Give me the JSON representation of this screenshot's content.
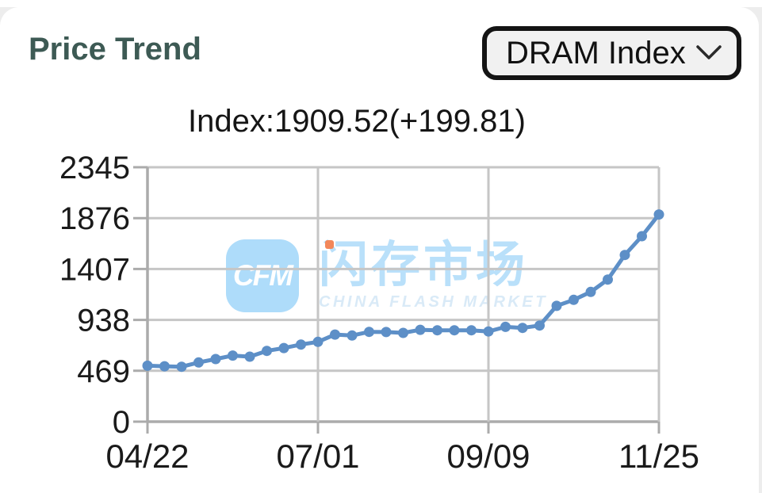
{
  "header": {
    "title": "Price Trend",
    "title_color": "#3d5a54",
    "dropdown": {
      "selected": "DRAM Index"
    }
  },
  "chart_data": {
    "type": "line",
    "title": "Index:1909.52(+199.81)",
    "index_value": 1909.52,
    "index_change": "+199.81",
    "xlabel": "",
    "ylabel": "",
    "ylim": [
      0,
      2345
    ],
    "y_ticks": [
      0,
      469,
      938,
      1407,
      1876,
      2345
    ],
    "x_tick_labels": [
      "04/22",
      "07/01",
      "09/09",
      "11/25"
    ],
    "x_tick_indices": [
      0,
      10,
      20,
      30
    ],
    "grid": true,
    "legend": "none",
    "series": [
      {
        "name": "DRAM Index",
        "color": "#5d8fc7",
        "marker": "circle",
        "values": [
          516,
          511,
          506,
          546,
          577,
          609,
          599,
          652,
          679,
          711,
          736,
          803,
          794,
          828,
          826,
          818,
          847,
          842,
          842,
          842,
          831,
          874,
          864,
          886,
          1067,
          1123,
          1196,
          1310,
          1536,
          1709.71,
          1909.52
        ]
      }
    ]
  },
  "watermark": {
    "logo_text": "CFM",
    "cn_text": "闪存市场",
    "en_text": "CHINA FLASH MARKET",
    "logo_color": "#aedcfa",
    "cn_color": "#b9e0fa",
    "en_color": "#d9eaf7",
    "dot_color": "#f2875a"
  },
  "colors": {
    "line": "#5d8fc7",
    "grid": "#c6c6c6",
    "axis": "#ababab",
    "card_background": "#ffffff",
    "page_background": "#ededed",
    "title_teal": "#3d5a54"
  }
}
